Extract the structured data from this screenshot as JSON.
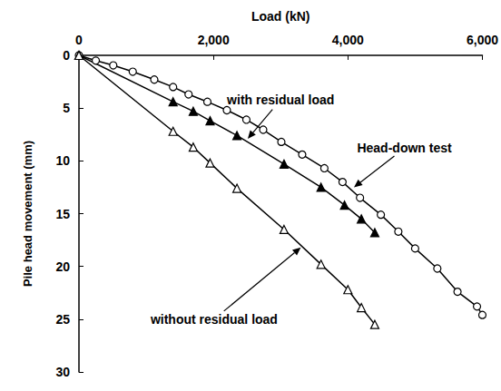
{
  "chart_data": {
    "type": "line",
    "x_label": "Load (kN)",
    "y_label": "Pile head movement (mm)",
    "xlim": [
      0,
      6000
    ],
    "xticks": [
      0,
      {
        "value": 2000,
        "label": "2,000"
      },
      {
        "value": 4000,
        "label": "4,000"
      },
      {
        "value": 6000,
        "label": "6,000"
      }
    ],
    "ylim": [
      0,
      30
    ],
    "yticks": [
      0,
      5,
      10,
      15,
      20,
      25,
      30
    ],
    "grid": false,
    "series": [
      {
        "name": "Head-down test",
        "color": "#000000",
        "marker": "circle-open",
        "line_style": "solid",
        "x": [
          0,
          250,
          510,
          800,
          1120,
          1400,
          1630,
          1910,
          2200,
          2490,
          2740,
          3010,
          3320,
          3650,
          3920,
          4180,
          4490,
          4750,
          5000,
          5330,
          5630,
          5920,
          6000
        ],
        "values": [
          0,
          0.5,
          0.95,
          1.55,
          2.3,
          3.0,
          3.7,
          4.4,
          5.2,
          6.1,
          7.05,
          8.2,
          9.4,
          10.7,
          12.0,
          13.5,
          15.1,
          16.7,
          18.3,
          20.2,
          22.4,
          23.8,
          24.6
        ]
      },
      {
        "name": "with residual load",
        "color": "#000000",
        "marker": "triangle",
        "line_style": "solid",
        "x": [
          0,
          1400,
          1700,
          1950,
          2350,
          3050,
          3600,
          3950,
          4200,
          4400
        ],
        "values": [
          0,
          4.4,
          5.3,
          6.2,
          7.6,
          10.3,
          12.5,
          14.2,
          15.5,
          16.8
        ]
      },
      {
        "name": "without residual load",
        "color": "#000000",
        "marker": "triangle-open",
        "line_style": "solid",
        "x": [
          0,
          1400,
          1700,
          1950,
          2350,
          3050,
          3600,
          4000,
          4200,
          4400
        ],
        "values": [
          0,
          7.2,
          8.7,
          10.2,
          12.6,
          16.5,
          19.8,
          22.2,
          23.9,
          25.5
        ]
      }
    ],
    "annotations": [
      {
        "text": "with residual load",
        "x": 3000,
        "y": 4.2,
        "arrow_to": [
          2510,
          7.9
        ]
      },
      {
        "text": "Head-down test",
        "x": 4840,
        "y": 8.8,
        "arrow_to": [
          4090,
          12.5
        ]
      },
      {
        "text": "without residual load",
        "x": 2010,
        "y": 25.0,
        "arrow_to": [
          3300,
          18.2
        ]
      }
    ]
  }
}
